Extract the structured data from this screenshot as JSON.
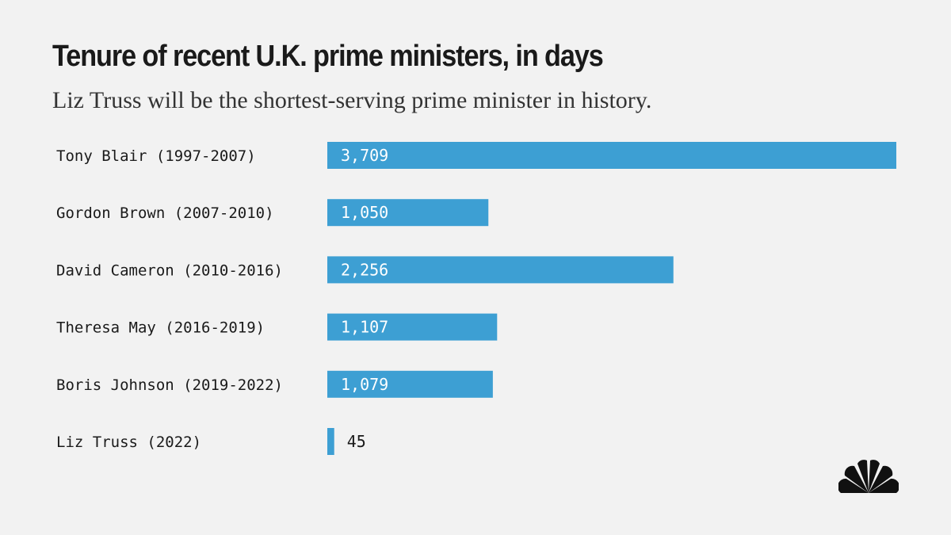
{
  "title": "Tenure of recent U.K. prime ministers, in days",
  "subtitle": "Liz Truss will be the shortest-serving prime minister in history.",
  "colors": {
    "bar": "#3d9fd3",
    "label_inside": "#ffffff",
    "label_outside": "#1a1a1a",
    "logo": "#111111"
  },
  "logo": "peacock-logo",
  "chart_data": {
    "type": "bar",
    "orientation": "horizontal",
    "categories": [
      "Tony Blair (1997-2007)",
      "Gordon Brown (2007-2010)",
      "David Cameron (2010-2016)",
      "Theresa May (2016-2019)",
      "Boris Johnson (2019-2022)",
      "Liz Truss (2022)"
    ],
    "values": [
      3709,
      1050,
      2256,
      1107,
      1079,
      45
    ],
    "value_labels": [
      "3,709",
      "1,050",
      "2,256",
      "1,107",
      "1,079",
      "45"
    ],
    "xlim": [
      0,
      3709
    ],
    "grid": false,
    "legend": "none"
  }
}
